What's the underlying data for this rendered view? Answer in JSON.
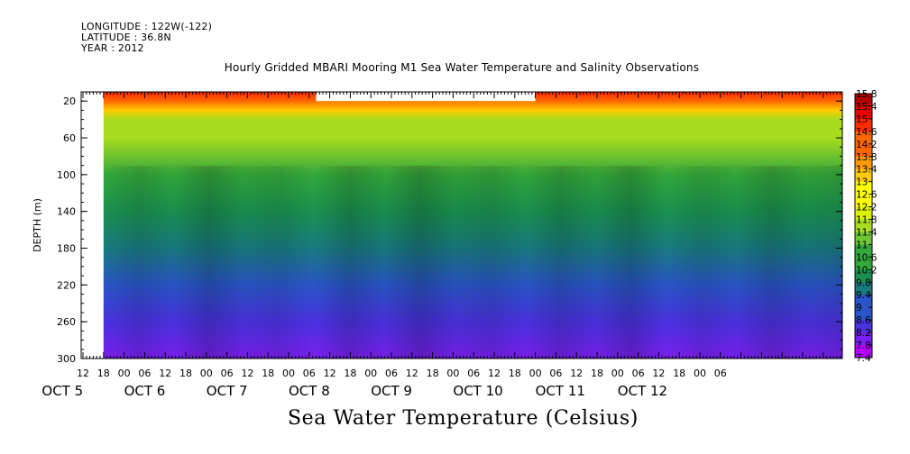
{
  "header": {
    "longitude": "LONGITUDE : 122W(-122)",
    "latitude": "LATITUDE : 36.8N",
    "year": "YEAR : 2012"
  },
  "title": "Hourly Gridded MBARI Mooring M1 Sea Water Temperature and Salinity Observations",
  "caption": "Sea Water Temperature (Celsius)",
  "colorbar_labels": [
    "15.8",
    "15.4",
    "15",
    "14.6",
    "14.2",
    "13.8",
    "13.4",
    "13",
    "12.6",
    "12.2",
    "11.8",
    "11.4",
    "11",
    "10.6",
    "10.2",
    "9.8",
    "9.4",
    "9",
    "8.6",
    "8.2",
    "7.8",
    "7.4"
  ],
  "colors": {
    "scale": [
      "#b30000",
      "#e60000",
      "#ff2a00",
      "#ff6600",
      "#ff9900",
      "#ffcc00",
      "#ffff00",
      "#ddf000",
      "#a8dc1e",
      "#6cc832",
      "#33a83c",
      "#1a9150",
      "#197a80",
      "#2a55c8",
      "#4a32e0",
      "#7a20f0",
      "#b400ff"
    ]
  },
  "chart_data": {
    "type": "heatmap",
    "title": "Hourly Gridded MBARI Mooring M1 Sea Water Temperature and Salinity Observations",
    "ylabel": "DEPTH (m)",
    "xlabel": "",
    "y_ticks": [
      20,
      60,
      100,
      140,
      180,
      220,
      260,
      300
    ],
    "ylim": [
      300,
      10
    ],
    "x_hour_ticks": [
      "12",
      "18",
      "00",
      "06",
      "12",
      "18",
      "00",
      "06",
      "12",
      "18",
      "00",
      "06",
      "12",
      "18",
      "00",
      "06",
      "12",
      "18",
      "00",
      "06",
      "12",
      "18",
      "00",
      "06",
      "12",
      "18",
      "00",
      "06",
      "12",
      "18",
      "00",
      "06"
    ],
    "x_day_labels": [
      "OCT  5",
      "OCT  6",
      "OCT  7",
      "OCT  8",
      "OCT  9",
      "OCT  10",
      "OCT  11",
      "OCT  12"
    ],
    "value_range": [
      7.4,
      15.8
    ],
    "data_start": "OCT 5 18:00",
    "data_end": "OCT 12 13:00",
    "top_gap": {
      "from": "OCT 8 08:00",
      "to": "OCT 11 00:00",
      "depth": 20
    },
    "depth_profile": [
      {
        "depth": 10,
        "temp": 14.6
      },
      {
        "depth": 20,
        "temp": 14.2
      },
      {
        "depth": 30,
        "temp": 13.0
      },
      {
        "depth": 40,
        "temp": 11.8
      },
      {
        "depth": 60,
        "temp": 11.4
      },
      {
        "depth": 100,
        "temp": 10.8
      },
      {
        "depth": 140,
        "temp": 10.2
      },
      {
        "depth": 180,
        "temp": 9.4
      },
      {
        "depth": 220,
        "temp": 8.8
      },
      {
        "depth": 260,
        "temp": 8.4
      },
      {
        "depth": 300,
        "temp": 8.0
      }
    ]
  }
}
